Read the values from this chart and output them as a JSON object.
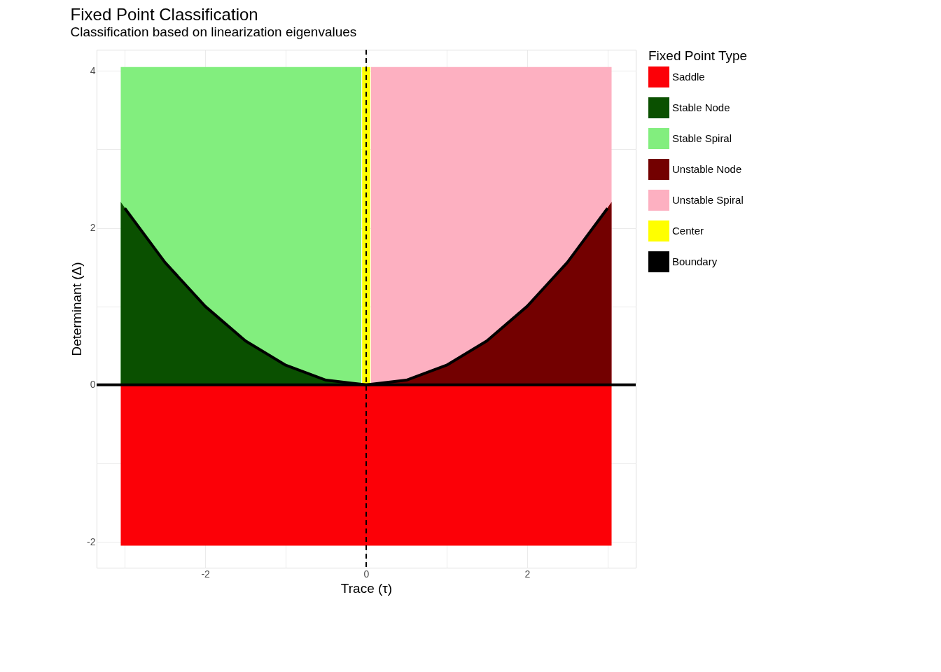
{
  "chart_data": {
    "type": "area",
    "title": "Fixed Point Classification",
    "subtitle": "Classification based on linearization eigenvalues",
    "xlabel": "Trace (τ)",
    "ylabel": "Determinant (Δ)",
    "legend_title": "Fixed Point Type",
    "legend": "right",
    "grid": true,
    "xlim": [
      -3.35,
      3.35
    ],
    "ylim": [
      -2.33,
      4.27
    ],
    "xticks": [
      {
        "value": -3,
        "label": null
      },
      -2,
      {
        "value": -1,
        "label": null
      },
      0,
      {
        "value": 1,
        "label": null
      },
      2,
      {
        "value": 3,
        "label": null
      }
    ],
    "yticks": [
      -2,
      {
        "value": -1,
        "label": null
      },
      0,
      {
        "value": 1,
        "label": null
      },
      2,
      {
        "value": 3,
        "label": null
      },
      4
    ],
    "series": [
      {
        "name": "Saddle",
        "color": "#fc0007",
        "x": [
          -3.05,
          3.05
        ],
        "values": [
          -2.05,
          -2.05
        ]
      },
      {
        "name": "Stable Node",
        "color": "#0a5000",
        "x": [
          -3.05,
          -2.75,
          -2.5,
          -2.25,
          -2,
          -1.75,
          -1.5,
          -1.25,
          -1,
          -0.75,
          -0.5,
          -0.25,
          -0.06
        ],
        "values": [
          2.33,
          1.89,
          1.56,
          1.27,
          1,
          0.77,
          0.56,
          0.39,
          0.25,
          0.14,
          0.06,
          0.02,
          0
        ]
      },
      {
        "name": "Stable Spiral",
        "color": "#82ee7e",
        "x": [
          -3.05,
          -0.06
        ],
        "values": [
          4.05,
          4.05
        ]
      },
      {
        "name": "Unstable Node",
        "color": "#730000",
        "x": [
          0.06,
          0.25,
          0.5,
          0.75,
          1,
          1.25,
          1.5,
          1.75,
          2,
          2.25,
          2.5,
          2.75,
          3.05
        ],
        "values": [
          0,
          0.02,
          0.06,
          0.14,
          0.25,
          0.39,
          0.56,
          0.77,
          1,
          1.27,
          1.56,
          1.89,
          2.33
        ]
      },
      {
        "name": "Unstable Spiral",
        "color": "#fdb0c1",
        "x": [
          0.06,
          3.05
        ],
        "values": [
          4.05,
          4.05
        ]
      },
      {
        "name": "Center",
        "color": "#ffff00",
        "x": [
          -0.05,
          0.05
        ],
        "values": [
          4.05,
          4.05
        ]
      },
      {
        "name": "Boundary",
        "type": "line",
        "color": "#000000",
        "x": [
          -3,
          -2.5,
          -2,
          -1.5,
          -1,
          -0.5,
          0,
          0.5,
          1,
          1.5,
          2,
          2.5,
          3
        ],
        "values": [
          2.25,
          1.56,
          1,
          0.56,
          0.25,
          0.06,
          0,
          0.06,
          0.25,
          0.56,
          1,
          1.56,
          2.25
        ]
      }
    ],
    "ref_lines": [
      {
        "axis": "y",
        "value": 0,
        "color": "#000000",
        "line_style": "solid"
      },
      {
        "axis": "x",
        "value": 0,
        "color": "#000000",
        "line_style": "dashed"
      }
    ]
  }
}
